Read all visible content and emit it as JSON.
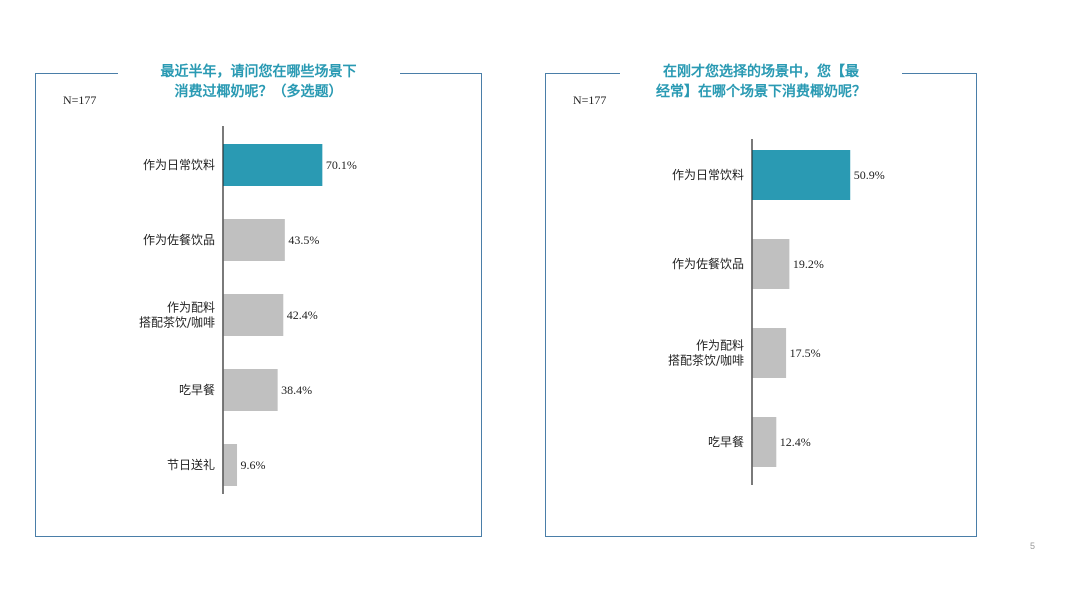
{
  "colors": {
    "highlight": "#2a9ab3",
    "bar": "#c0c0c0",
    "axis": "#222222",
    "border": "#4a7ea8"
  },
  "page_number": "5",
  "chart_data": [
    {
      "type": "bar",
      "orientation": "horizontal",
      "title": "最近半年，请问您在哪些场景下\n消费过椰奶呢？（多选题）",
      "n_label": "N=177",
      "categories": [
        "作为日常饮料",
        "作为佐餐饮品",
        "作为配料\n搭配茶饮/咖啡",
        "吃早餐",
        "节日送礼"
      ],
      "values": [
        70.1,
        43.5,
        42.4,
        38.4,
        9.6
      ],
      "value_labels": [
        "70.1%",
        "43.5%",
        "42.4%",
        "38.4%",
        "9.6%"
      ],
      "highlight_index": 0,
      "xlim": [
        0,
        100
      ]
    },
    {
      "type": "bar",
      "orientation": "horizontal",
      "title": "在刚才您选择的场景中，您【最\n经常】在哪个场景下消费椰奶呢？",
      "n_label": "N=177",
      "categories": [
        "作为日常饮料",
        "作为佐餐饮品",
        "作为配料\n搭配茶饮/咖啡",
        "吃早餐"
      ],
      "values": [
        50.9,
        19.2,
        17.5,
        12.4
      ],
      "value_labels": [
        "50.9%",
        "19.2%",
        "17.5%",
        "12.4%"
      ],
      "highlight_index": 0,
      "xlim": [
        0,
        100
      ]
    }
  ]
}
